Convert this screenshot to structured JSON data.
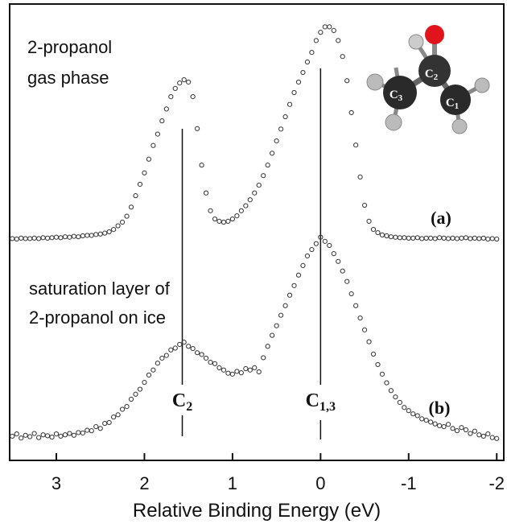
{
  "chart_data": {
    "type": "scatter",
    "xlabel": "Relative Binding Energy (eV)",
    "xlim": [
      3.53,
      -2.08
    ],
    "xticks": [
      3,
      2,
      1,
      0,
      -1,
      -2
    ],
    "ylim": [
      0,
      100
    ],
    "annotations": [
      {
        "lines": [
          "2-propanol",
          "gas phase"
        ]
      },
      {
        "lines": [
          "saturation layer of",
          "2-propanol on ice"
        ]
      }
    ],
    "peak_labels": [
      {
        "text": "C",
        "sub": "2",
        "x": 1.57
      },
      {
        "text": "C",
        "sub": "1,3",
        "x": 0
      }
    ],
    "molecule_labels": [
      {
        "text": "C",
        "sub": "3"
      },
      {
        "text": "C",
        "sub": "2"
      },
      {
        "text": "C",
        "sub": "1"
      }
    ],
    "x": [
      3.5,
      3.45,
      3.4,
      3.35,
      3.3,
      3.25,
      3.2,
      3.15,
      3.1,
      3.05,
      3,
      2.95,
      2.9,
      2.85,
      2.8,
      2.75,
      2.7,
      2.65,
      2.6,
      2.55,
      2.5,
      2.45,
      2.4,
      2.35,
      2.3,
      2.25,
      2.2,
      2.15,
      2.1,
      2.05,
      2,
      1.95,
      1.9,
      1.85,
      1.8,
      1.75,
      1.7,
      1.65,
      1.6,
      1.55,
      1.5,
      1.45,
      1.4,
      1.35,
      1.3,
      1.25,
      1.2,
      1.15,
      1.1,
      1.05,
      1,
      0.95,
      0.9,
      0.85,
      0.8,
      0.75,
      0.7,
      0.65,
      0.6,
      0.55,
      0.5,
      0.45,
      0.4,
      0.35,
      0.3,
      0.25,
      0.2,
      0.15,
      0.1,
      0.05,
      0,
      -0.05,
      -0.1,
      -0.15,
      -0.2,
      -0.25,
      -0.3,
      -0.35,
      -0.4,
      -0.45,
      -0.5,
      -0.55,
      -0.6,
      -0.65,
      -0.7,
      -0.75,
      -0.8,
      -0.85,
      -0.9,
      -0.95,
      -1,
      -1.05,
      -1.1,
      -1.15,
      -1.2,
      -1.25,
      -1.3,
      -1.35,
      -1.4,
      -1.45,
      -1.5,
      -1.55,
      -1.6,
      -1.65,
      -1.7,
      -1.75,
      -1.8,
      -1.85,
      -1.9,
      -1.95,
      -2
    ],
    "series": [
      {
        "name": "(a)",
        "color": "#333333",
        "values": [
          48.6,
          48.5,
          48.7,
          48.6,
          48.6,
          48.7,
          48.6,
          48.8,
          48.7,
          48.8,
          48.9,
          48.8,
          49.0,
          48.9,
          49.1,
          49.0,
          49.2,
          49.3,
          49.3,
          49.5,
          49.6,
          49.8,
          50.1,
          50.6,
          51.4,
          52.2,
          53.5,
          55.5,
          58,
          60.5,
          63,
          66,
          69,
          71.5,
          74.4,
          77,
          79.7,
          81.5,
          82.7,
          83.4,
          82.9,
          79.7,
          72.7,
          64.7,
          58.6,
          54.7,
          52.9,
          52.4,
          52.2,
          52.4,
          52.9,
          53.6,
          54.7,
          55.8,
          57.1,
          58.6,
          60.3,
          62.4,
          64.7,
          67.3,
          70,
          72.6,
          75.3,
          78,
          80.6,
          82.9,
          85,
          87.3,
          89.4,
          92,
          93.8,
          95,
          95,
          94.2,
          92,
          88.5,
          83.2,
          76.2,
          69.1,
          62.1,
          55.9,
          52.4,
          50.6,
          49.9,
          49.4,
          49.2,
          49.0,
          48.9,
          48.8,
          48.8,
          48.7,
          48.7,
          48.8,
          48.6,
          48.7,
          48.7,
          48.6,
          48.8,
          48.7,
          48.6,
          48.7,
          48.6,
          48.7,
          48.8,
          48.6,
          48.7,
          48.6,
          48.7,
          48.5,
          48.6,
          48.5
        ]
      },
      {
        "name": "(b)",
        "color": "#333333",
        "values": [
          5.3,
          5.8,
          4.9,
          5.5,
          5.2,
          5.9,
          5.0,
          5.6,
          5.4,
          5.1,
          5.8,
          5.3,
          5.6,
          5.9,
          5.5,
          6.1,
          6.0,
          6.6,
          6.5,
          7.4,
          7.0,
          8.1,
          8.3,
          9.5,
          10,
          11.2,
          11.8,
          13.4,
          14.5,
          15.6,
          17.1,
          18.7,
          19.8,
          21.3,
          22.4,
          23.0,
          24.2,
          24.6,
          25.4,
          25.9,
          25.0,
          24.5,
          23.6,
          23.2,
          22.4,
          21.5,
          21.2,
          20.3,
          19.8,
          19.1,
          18.9,
          19.5,
          19.2,
          20.1,
          19.8,
          20.3,
          19.4,
          22.5,
          25,
          27.4,
          29.5,
          31.8,
          33.9,
          36.2,
          38.3,
          40.6,
          42.7,
          44.8,
          46.2,
          47.5,
          48.9,
          48,
          47.1,
          45.3,
          43.6,
          41.5,
          39.2,
          36.5,
          33.9,
          31.2,
          28.6,
          26.0,
          23.3,
          21.0,
          18.9,
          17.0,
          15.3,
          13.9,
          12.7,
          11.6,
          10.9,
          10.2,
          9.8,
          9.1,
          8.8,
          8.4,
          8.0,
          7.6,
          7.4,
          7.9,
          7.0,
          6.5,
          7.2,
          6.7,
          5.9,
          6.4,
          5.6,
          5.3,
          5.8,
          5.0,
          4.8
        ]
      }
    ]
  }
}
